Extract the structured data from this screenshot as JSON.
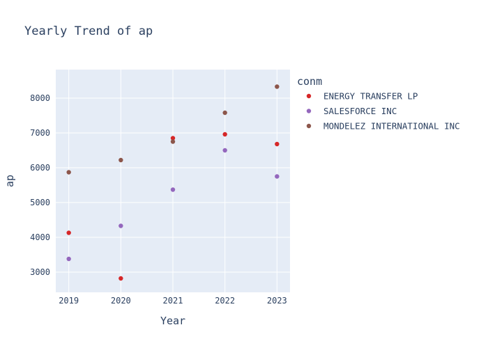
{
  "chart_data": {
    "type": "scatter",
    "title": "Yearly Trend of ap",
    "xlabel": "Year",
    "ylabel": "ap",
    "x": [
      "2019",
      "2020",
      "2021",
      "2022",
      "2023"
    ],
    "xlim": [
      2018.75,
      2023.25
    ],
    "ylim": [
      2420,
      8820
    ],
    "yticks": [
      3000,
      4000,
      5000,
      6000,
      7000,
      8000
    ],
    "grid": true,
    "legend": {
      "title": "conm",
      "placement": "right"
    },
    "series": [
      {
        "name": "ENERGY TRANSFER LP",
        "color": "#d62728",
        "values": [
          4130,
          2820,
          6850,
          6960,
          6680
        ]
      },
      {
        "name": "SALESFORCE INC",
        "color": "#9467bd",
        "values": [
          3380,
          4330,
          5370,
          6500,
          5750
        ]
      },
      {
        "name": "MONDELEZ INTERNATIONAL INC",
        "color": "#8c564b",
        "values": [
          5870,
          6220,
          6750,
          7580,
          8330
        ]
      }
    ],
    "plot_bg": "#e5ecf6"
  }
}
